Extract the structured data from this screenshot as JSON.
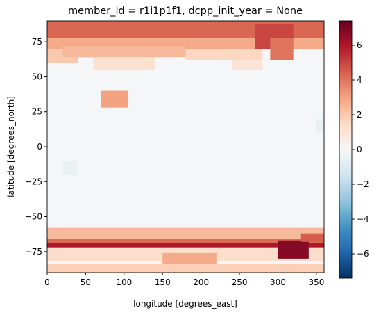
{
  "chart_data": {
    "type": "heatmap",
    "title": "member_id = r1i1p1f1, dcpp_init_year = None",
    "xlabel": "longitude [degrees_east]",
    "ylabel": "latitude [degrees_north]",
    "xlim": [
      0,
      360
    ],
    "ylim": [
      -90,
      90
    ],
    "x_ticks": [
      0,
      50,
      100,
      150,
      200,
      250,
      300,
      350
    ],
    "y_ticks": [
      -75,
      -50,
      -25,
      0,
      25,
      50,
      75
    ],
    "colorbar": {
      "colormap": "RdBu_r",
      "vmin": -7.4,
      "vmax": 7.4,
      "ticks": [
        -6,
        -4,
        -2,
        0,
        2,
        4,
        6
      ],
      "tick_labels": [
        "−6",
        "−4",
        "−2",
        "0",
        "2",
        "4",
        "6"
      ]
    },
    "regions": [
      {
        "lon": [
          0,
          360
        ],
        "lat": [
          78,
          90
        ],
        "value": 4.3
      },
      {
        "lon": [
          0,
          360
        ],
        "lat": [
          70,
          78
        ],
        "value": 2.8
      },
      {
        "lon": [
          0,
          40
        ],
        "lat": [
          60,
          70
        ],
        "value": 2.0
      },
      {
        "lon": [
          20,
          180
        ],
        "lat": [
          64,
          72
        ],
        "value": 2.4
      },
      {
        "lon": [
          60,
          140
        ],
        "lat": [
          55,
          64
        ],
        "value": 1.2
      },
      {
        "lon": [
          180,
          280
        ],
        "lat": [
          62,
          70
        ],
        "value": 1.6
      },
      {
        "lon": [
          270,
          320
        ],
        "lat": [
          70,
          88
        ],
        "value": 5.0
      },
      {
        "lon": [
          290,
          320
        ],
        "lat": [
          62,
          78
        ],
        "value": 4.0
      },
      {
        "lon": [
          240,
          280
        ],
        "lat": [
          55,
          62
        ],
        "value": 1.0
      },
      {
        "lon": [
          70,
          105
        ],
        "lat": [
          28,
          40
        ],
        "value": 3.0
      },
      {
        "lon": [
          -5,
          360
        ],
        "lat": [
          -66,
          -58
        ],
        "value": 2.4
      },
      {
        "lon": [
          0,
          360
        ],
        "lat": [
          -70,
          -66
        ],
        "value": 4.2
      },
      {
        "lon": [
          0,
          360
        ],
        "lat": [
          -72,
          -69
        ],
        "value": 6.0
      },
      {
        "lon": [
          0,
          360
        ],
        "lat": [
          -82,
          -72
        ],
        "value": 1.3
      },
      {
        "lon": [
          150,
          220
        ],
        "lat": [
          -86,
          -76
        ],
        "value": 2.8
      },
      {
        "lon": [
          300,
          340
        ],
        "lat": [
          -80,
          -67
        ],
        "value": 6.8
      },
      {
        "lon": [
          330,
          360
        ],
        "lat": [
          -68,
          -62
        ],
        "value": 4.5
      },
      {
        "lon": [
          0,
          360
        ],
        "lat": [
          -90,
          -84
        ],
        "value": 1.8
      },
      {
        "lon": [
          20,
          40
        ],
        "lat": [
          -20,
          -10
        ],
        "value": -0.5
      },
      {
        "lon": [
          350,
          360
        ],
        "lat": [
          10,
          20
        ],
        "value": -0.6
      }
    ]
  }
}
